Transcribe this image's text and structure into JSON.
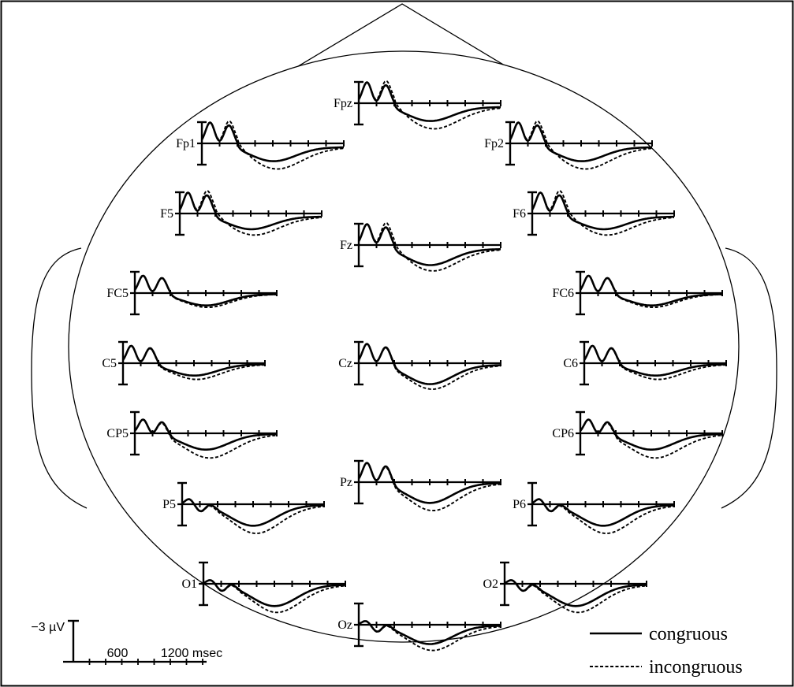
{
  "chart_data": {
    "type": "line",
    "layout": "scalp-topographic",
    "x_range_msec": [
      0,
      1200
    ],
    "tick_interval_msec": 150,
    "y_range_uV": [
      -3,
      3
    ],
    "series": [
      {
        "name": "congruous",
        "style": "solid"
      },
      {
        "name": "incongruous",
        "style": "dashed"
      }
    ],
    "scale_bar": {
      "amplitude_label": "−3 µV",
      "time_label_1": "600",
      "time_label_2": "1200 msec"
    },
    "electrodes": [
      {
        "label": "Fpz",
        "profile": "frontal",
        "peak_uV": 3.0,
        "neg_uV": 2.0,
        "diff_uV": 1.2,
        "sustained": 0.55
      },
      {
        "label": "Fp1",
        "profile": "frontal",
        "peak_uV": 3.0,
        "neg_uV": 2.0,
        "diff_uV": 1.2,
        "sustained": 0.55
      },
      {
        "label": "Fp2",
        "profile": "frontal",
        "peak_uV": 3.0,
        "neg_uV": 2.0,
        "diff_uV": 1.2,
        "sustained": 0.55
      },
      {
        "label": "F5",
        "profile": "frontal",
        "peak_uV": 3.0,
        "neg_uV": 1.8,
        "diff_uV": 0.9,
        "sustained": 0.5
      },
      {
        "label": "Fz",
        "profile": "frontal",
        "peak_uV": 3.0,
        "neg_uV": 2.3,
        "diff_uV": 0.9,
        "sustained": 0.5
      },
      {
        "label": "F6",
        "profile": "frontal",
        "peak_uV": 3.0,
        "neg_uV": 1.8,
        "diff_uV": 0.9,
        "sustained": 0.5
      },
      {
        "label": "FC5",
        "profile": "central",
        "peak_uV": 2.5,
        "neg_uV": 1.6,
        "diff_uV": 0.3,
        "sustained": 0.2
      },
      {
        "label": "FC6",
        "profile": "central",
        "peak_uV": 2.5,
        "neg_uV": 1.6,
        "diff_uV": 0.3,
        "sustained": 0.2
      },
      {
        "label": "C5",
        "profile": "central",
        "peak_uV": 2.5,
        "neg_uV": 1.6,
        "diff_uV": 0.6,
        "sustained": 0.2
      },
      {
        "label": "Cz",
        "profile": "central",
        "peak_uV": 2.8,
        "neg_uV": 2.7,
        "diff_uV": 0.8,
        "sustained": 0.2
      },
      {
        "label": "C6",
        "profile": "central",
        "peak_uV": 2.5,
        "neg_uV": 1.6,
        "diff_uV": 0.6,
        "sustained": 0.2
      },
      {
        "label": "CP5",
        "profile": "posterior",
        "peak_uV": 2.0,
        "neg_uV": 2.2,
        "diff_uV": 1.3,
        "sustained": 0.1
      },
      {
        "label": "CP6",
        "profile": "posterior",
        "peak_uV": 2.0,
        "neg_uV": 2.2,
        "diff_uV": 1.3,
        "sustained": 0.1
      },
      {
        "label": "Pz",
        "profile": "posterior",
        "peak_uV": 2.8,
        "neg_uV": 2.8,
        "diff_uV": 1.2,
        "sustained": 0.1
      },
      {
        "label": "P5",
        "profile": "occipital",
        "peak_uV": 0.8,
        "neg_uV": 2.9,
        "diff_uV": 1.2,
        "sustained": 0.1
      },
      {
        "label": "P6",
        "profile": "occipital",
        "peak_uV": 0.8,
        "neg_uV": 2.9,
        "diff_uV": 1.2,
        "sustained": 0.1
      },
      {
        "label": "O1",
        "profile": "occipital",
        "peak_uV": 0.6,
        "neg_uV": 3.0,
        "diff_uV": 1.0,
        "sustained": 0.1
      },
      {
        "label": "O2",
        "profile": "occipital",
        "peak_uV": 0.6,
        "neg_uV": 3.0,
        "diff_uV": 1.0,
        "sustained": 0.1
      },
      {
        "label": "Oz",
        "profile": "occipital",
        "peak_uV": 0.6,
        "neg_uV": 2.6,
        "diff_uV": 1.0,
        "sustained": 0.1
      }
    ]
  }
}
